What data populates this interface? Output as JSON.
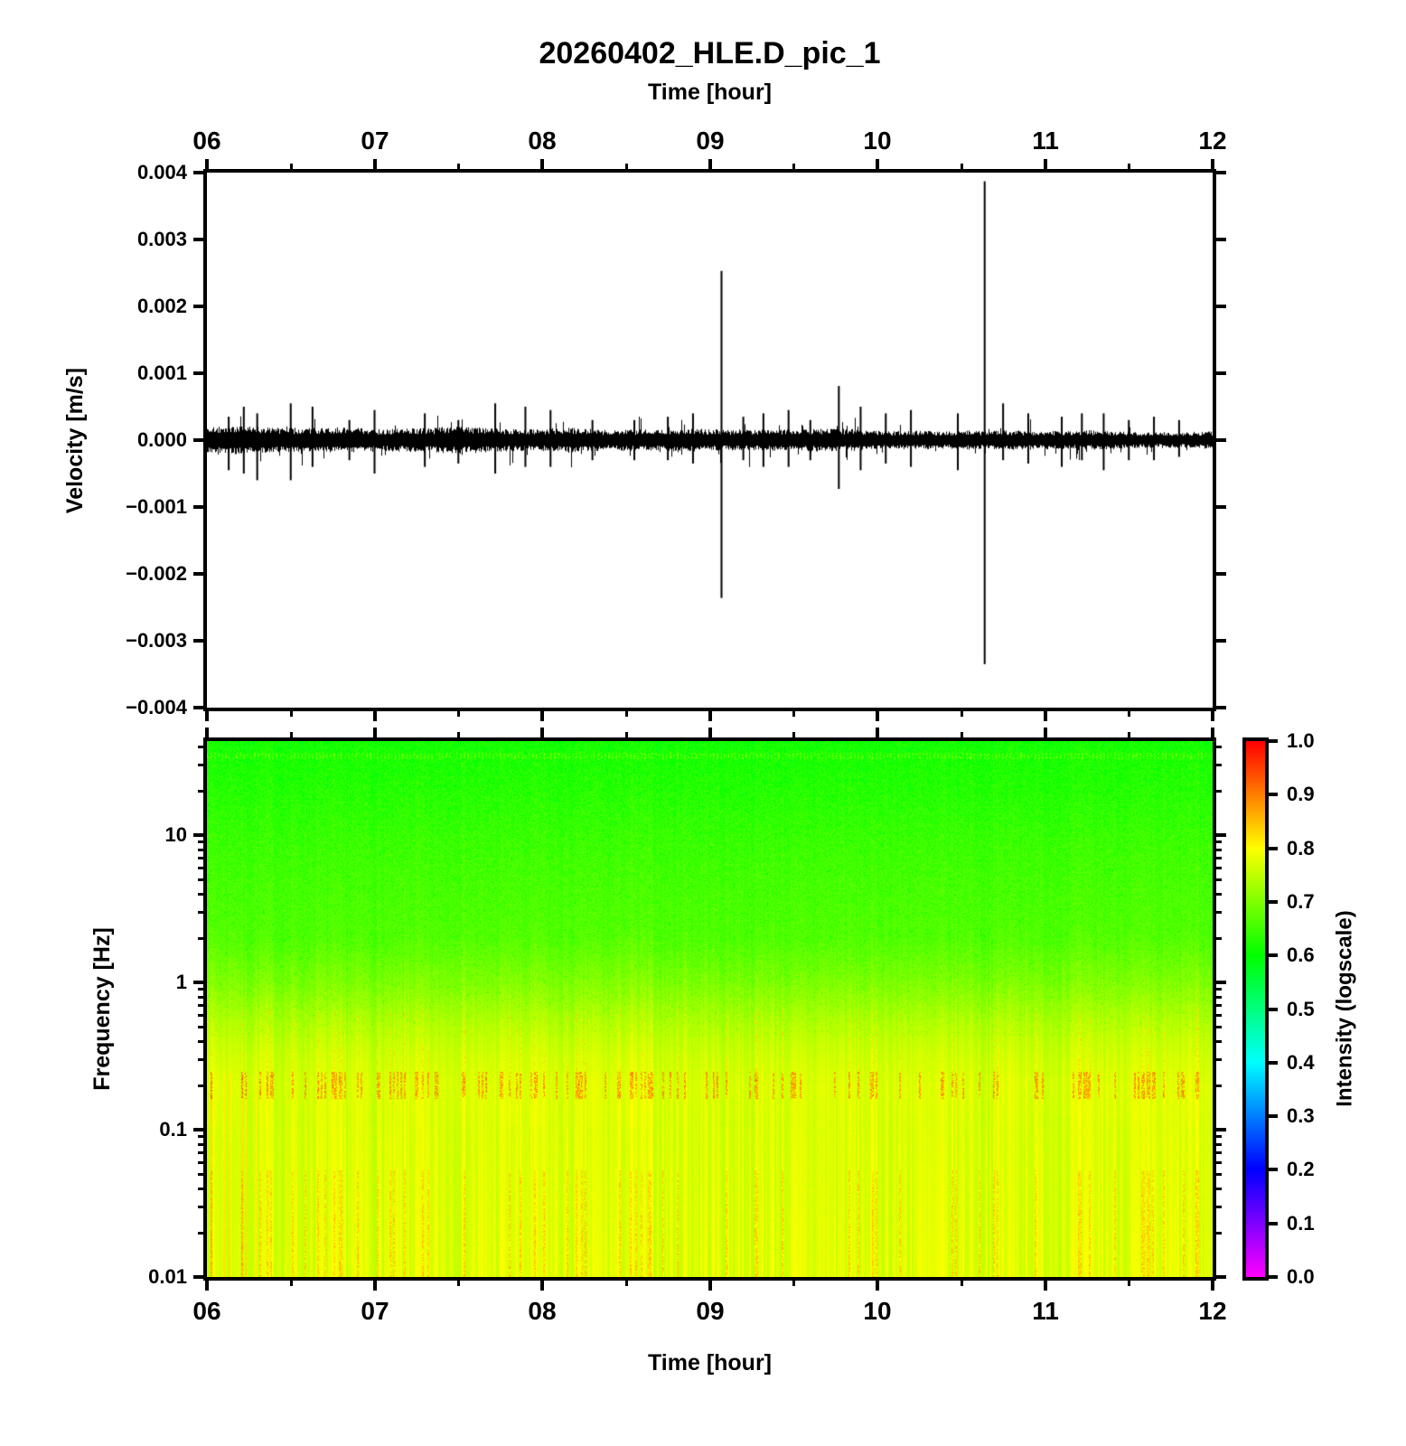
{
  "title": "20260402_HLE.D_pic_1",
  "background_color": "#ffffff",
  "axes": {
    "top": {
      "title": "Time [hour]",
      "ticks": [
        "06",
        "07",
        "08",
        "09",
        "10",
        "11",
        "12"
      ]
    },
    "bottom": {
      "title": "Time [hour]",
      "ticks": [
        "06",
        "07",
        "08",
        "09",
        "10",
        "11",
        "12"
      ]
    }
  },
  "waveform": {
    "ylabel": "Velocity [m/s]",
    "yticks": [
      "0.004",
      "0.003",
      "0.002",
      "0.001",
      "0.000",
      "−0.001",
      "−0.002",
      "−0.003",
      "−0.004"
    ],
    "trace_color": "#000000"
  },
  "spectrogram": {
    "ylabel": "Frequency [Hz]",
    "yticks": [
      "10",
      "1",
      "0.1",
      "0.01"
    ]
  },
  "colorbar": {
    "title": "Intensity (logscale)",
    "ticks": [
      "1.0",
      "0.9",
      "0.8",
      "0.7",
      "0.6",
      "0.5",
      "0.4",
      "0.3",
      "0.2",
      "0.1",
      "0.0"
    ],
    "colormap_stops": {
      "0.0": "#ff00ff",
      "0.2": "#0000ff",
      "0.4": "#00ffff",
      "0.6": "#00ff00",
      "0.8": "#ffff00",
      "1.0": "#ff0000"
    }
  },
  "chart_data": [
    {
      "type": "line",
      "title": "20260402_HLE.D_pic_1 seismic waveform",
      "xlabel": "Time [hour]",
      "ylabel": "Velocity [m/s]",
      "xlim": [
        6,
        12
      ],
      "ylim": [
        -0.004,
        0.004
      ],
      "x_ticks": [
        6,
        7,
        8,
        9,
        10,
        11,
        12
      ],
      "y_ticks": [
        0.004,
        0.003,
        0.002,
        0.001,
        0.0,
        -0.001,
        -0.002,
        -0.003,
        -0.004
      ],
      "line_color": "#000000",
      "background_noise_amplitude": 0.0001,
      "events": [
        {
          "time_hour": 9.07,
          "peak": 0.00253,
          "trough": -0.00236
        },
        {
          "time_hour": 9.77,
          "peak": 0.00081,
          "trough": -0.00073
        },
        {
          "time_hour": 10.64,
          "peak": 0.00387,
          "trough": -0.00335
        }
      ],
      "minor_spikes": [
        [
          6.13,
          0.00035,
          0.00045
        ],
        [
          6.22,
          0.0005,
          0.0005
        ],
        [
          6.3,
          0.0004,
          0.0006
        ],
        [
          6.5,
          0.00055,
          0.0006
        ],
        [
          6.63,
          0.0005,
          0.0004
        ],
        [
          6.85,
          0.0003,
          0.0003
        ],
        [
          7.0,
          0.00045,
          0.0005
        ],
        [
          7.3,
          0.0004,
          0.0004
        ],
        [
          7.5,
          0.0003,
          0.00035
        ],
        [
          7.72,
          0.00055,
          0.0005
        ],
        [
          7.9,
          0.0005,
          0.0004
        ],
        [
          8.05,
          0.00045,
          0.0004
        ],
        [
          8.3,
          0.0003,
          0.0003
        ],
        [
          8.55,
          0.0003,
          0.0003
        ],
        [
          8.75,
          0.00035,
          0.0003
        ],
        [
          8.9,
          0.0004,
          0.00035
        ],
        [
          9.2,
          0.00035,
          0.0003
        ],
        [
          9.32,
          0.0004,
          0.0004
        ],
        [
          9.47,
          0.00045,
          0.0004
        ],
        [
          9.6,
          0.0003,
          0.0003
        ],
        [
          9.9,
          0.0005,
          0.00045
        ],
        [
          10.05,
          0.0004,
          0.00035
        ],
        [
          10.2,
          0.00045,
          0.0004
        ],
        [
          10.48,
          0.0004,
          0.00045
        ],
        [
          10.75,
          0.00055,
          0.0003
        ],
        [
          10.9,
          0.0004,
          0.00035
        ],
        [
          11.1,
          0.00035,
          0.0004
        ],
        [
          11.22,
          0.0004,
          0.0003
        ],
        [
          11.35,
          0.0004,
          0.00045
        ],
        [
          11.5,
          0.0003,
          0.0003
        ],
        [
          11.65,
          0.00035,
          0.0003
        ],
        [
          11.8,
          0.0003,
          0.00025
        ]
      ]
    },
    {
      "type": "heatmap",
      "title": "Spectrogram",
      "xlabel": "Time [hour]",
      "ylabel": "Frequency [Hz]",
      "xlim": [
        6,
        12
      ],
      "ylim_hz": [
        0.01,
        43
      ],
      "yscale": "log",
      "y_ticks_hz": [
        10,
        1,
        0.1,
        0.01
      ],
      "colorbar_label": "Intensity (logscale)",
      "colorbar_range": [
        0,
        1
      ],
      "colormap": "rainbow magenta-blue-cyan-green-yellow-red",
      "intensity_profile": [
        {
          "freq_hz": 43,
          "intensity": 0.615
        },
        {
          "freq_hz": 20,
          "intensity": 0.63
        },
        {
          "freq_hz": 10,
          "intensity": 0.645
        },
        {
          "freq_hz": 5,
          "intensity": 0.655
        },
        {
          "freq_hz": 2,
          "intensity": 0.665
        },
        {
          "freq_hz": 1,
          "intensity": 0.7
        },
        {
          "freq_hz": 0.5,
          "intensity": 0.745
        },
        {
          "freq_hz": 0.3,
          "intensity": 0.765
        },
        {
          "freq_hz": 0.2,
          "intensity": 0.775
        },
        {
          "freq_hz": 0.1,
          "intensity": 0.772
        },
        {
          "freq_hz": 0.03,
          "intensity": 0.775
        },
        {
          "freq_hz": 0.01,
          "intensity": 0.778
        }
      ],
      "features": [
        "fine vertical yellow striping below ~1 Hz",
        "orange-red dashed stripes concentrated near 0.2 Hz",
        "green speckled texture above ~2 Hz",
        "brighter dotted band just below top edge"
      ]
    }
  ]
}
